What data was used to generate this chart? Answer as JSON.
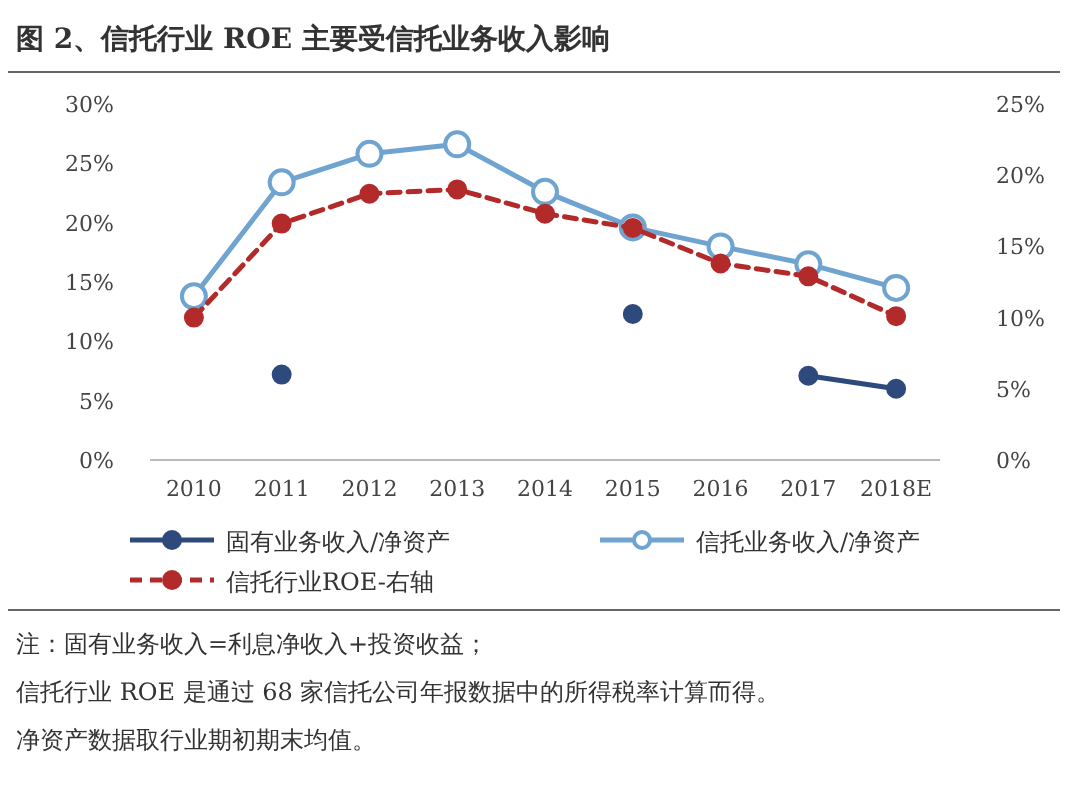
{
  "chart_data": {
    "type": "line",
    "title": "图 2、信托行业 ROE 主要受信托业务收入影响",
    "categories": [
      "2010",
      "2011",
      "2012",
      "2013",
      "2014",
      "2015",
      "2016",
      "2017",
      "2018E"
    ],
    "series": [
      {
        "name": "固有业务收入/净资产",
        "color": "#2e4a7d",
        "values": [
          null,
          7.2,
          null,
          null,
          null,
          12.3,
          null,
          7.1,
          6.0
        ]
      },
      {
        "name": "信托业务收入/净资产",
        "color": "#6fa3d0",
        "values": [
          13.8,
          23.4,
          25.8,
          26.6,
          22.6,
          19.6,
          18.0,
          16.5,
          14.5
        ]
      },
      {
        "name": "信托行业ROE-右轴",
        "color": "#b22a2a",
        "axis": "y2",
        "line_style": "dashed",
        "values": [
          10.0,
          16.6,
          18.7,
          19.0,
          17.3,
          16.3,
          13.8,
          12.9,
          10.1
        ]
      }
    ],
    "ylim": [
      0,
      30
    ],
    "yticks": [
      {
        "value": 0,
        "label": "0%"
      },
      {
        "value": 5,
        "label": "5%"
      },
      {
        "value": 10,
        "label": "10%"
      },
      {
        "value": 15,
        "label": "15%"
      },
      {
        "value": 20,
        "label": "20%"
      },
      {
        "value": 25,
        "label": "25%"
      },
      {
        "value": 30,
        "label": "30%"
      }
    ],
    "y2lim": [
      0,
      25
    ],
    "y2ticks": [
      {
        "value": 0,
        "label": "0%"
      },
      {
        "value": 5,
        "label": "5%"
      },
      {
        "value": 10,
        "label": "10%"
      },
      {
        "value": 15,
        "label": "15%"
      },
      {
        "value": 20,
        "label": "20%"
      },
      {
        "value": 25,
        "label": "25%"
      }
    ],
    "marker": "circle",
    "legend": "bottom",
    "grid": false,
    "annotations": [
      "注：固有业务收入=利息净收入+投资收益；",
      "信托行业 ROE 是通过 68 家信托公司年报数据中的所得税率计算而得。",
      "净资产数据取行业期初期末均值。"
    ]
  }
}
